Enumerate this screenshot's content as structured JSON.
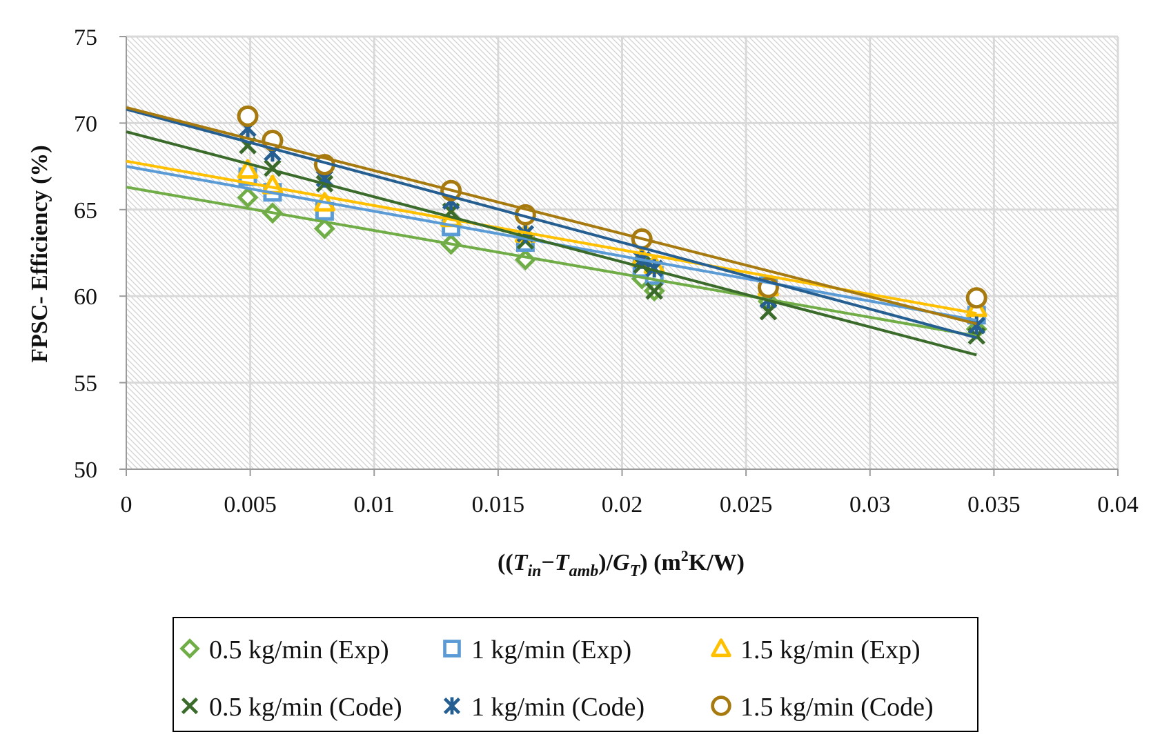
{
  "chart_data": {
    "type": "scatter",
    "title": "",
    "xlabel": {
      "prefix": "((",
      "t1": "T",
      "t1_sub": "in",
      "dash": "−",
      "t2": "T",
      "t2_sub": "amb",
      "mid": ")/",
      "g": "G",
      "g_sub": "T",
      "suffix_a": ") (m",
      "sup": "2",
      "suffix_b": "K/W)"
    },
    "ylabel": "FPSC- Efficiency (%)",
    "xlim": [
      0,
      0.04
    ],
    "ylim": [
      50,
      75
    ],
    "xticks": [
      "0",
      "0.005",
      "0.01",
      "0.015",
      "0.02",
      "0.025",
      "0.03",
      "0.035",
      "0.04"
    ],
    "yticks": [
      "50",
      "55",
      "60",
      "65",
      "70",
      "75"
    ],
    "grid": true,
    "legend_position": "bottom",
    "series": [
      {
        "name": "0.5 kg/min (Exp)",
        "marker": "diamond",
        "color": "#70AD47",
        "x": [
          0.0049,
          0.0059,
          0.008,
          0.0131,
          0.0161,
          0.0208,
          0.0213,
          0.0259,
          0.0343
        ],
        "y": [
          65.7,
          64.8,
          63.9,
          63.0,
          62.1,
          61.0,
          60.3,
          59.7,
          58.1
        ],
        "trend": {
          "x": [
            0,
            0.0343
          ],
          "y": [
            66.3,
            57.7
          ]
        }
      },
      {
        "name": "1 kg/min (Exp)",
        "marker": "square",
        "color": "#5B9BD5",
        "x": [
          0.0049,
          0.0059,
          0.008,
          0.0131,
          0.0161,
          0.0208,
          0.0213,
          0.0259,
          0.0343
        ],
        "y": [
          66.9,
          66.0,
          64.9,
          64.0,
          63.1,
          61.6,
          61.2,
          60.6,
          58.9
        ],
        "trend": {
          "x": [
            0,
            0.0343
          ],
          "y": [
            67.5,
            58.6
          ]
        }
      },
      {
        "name": "1.5 kg/min (Exp)",
        "marker": "triangle",
        "color": "#FFC000",
        "x": [
          0.0049,
          0.0059,
          0.008,
          0.0131,
          0.0161,
          0.0208,
          0.0213,
          0.0259,
          0.0343
        ],
        "y": [
          67.3,
          66.4,
          65.4,
          64.5,
          63.6,
          62.2,
          61.8,
          60.5,
          59.3
        ],
        "trend": {
          "x": [
            0,
            0.0343
          ],
          "y": [
            67.8,
            59.0
          ]
        }
      },
      {
        "name": "0.5 kg/min (Code)",
        "marker": "x",
        "color": "#3A6B2A",
        "x": [
          0.0049,
          0.0059,
          0.008,
          0.0131,
          0.0161,
          0.0208,
          0.0213,
          0.0259,
          0.0343
        ],
        "y": [
          68.7,
          67.4,
          66.5,
          64.9,
          63.2,
          61.8,
          60.3,
          59.1,
          57.7
        ],
        "trend": {
          "x": [
            0,
            0.0343
          ],
          "y": [
            69.5,
            56.6
          ]
        }
      },
      {
        "name": "1 kg/min (Code)",
        "marker": "star",
        "color": "#255E91",
        "x": [
          0.0049,
          0.0059,
          0.008,
          0.0131,
          0.0161,
          0.0208,
          0.0213,
          0.0259,
          0.0343
        ],
        "y": [
          69.7,
          68.3,
          66.8,
          65.5,
          63.6,
          62.1,
          61.6,
          59.8,
          58.3
        ],
        "trend": {
          "x": [
            0,
            0.0343
          ],
          "y": [
            70.8,
            57.6
          ]
        }
      },
      {
        "name": "1.5 kg/min (Code)",
        "marker": "circle",
        "color": "#A67A0E",
        "x": [
          0.0049,
          0.0059,
          0.008,
          0.0131,
          0.0161,
          0.0208,
          0.0259,
          0.0343
        ],
        "y": [
          70.4,
          69.0,
          67.6,
          66.1,
          64.7,
          63.3,
          60.5,
          59.9
        ],
        "trend": {
          "x": [
            0,
            0.0343
          ],
          "y": [
            70.9,
            58.4
          ]
        }
      }
    ]
  }
}
